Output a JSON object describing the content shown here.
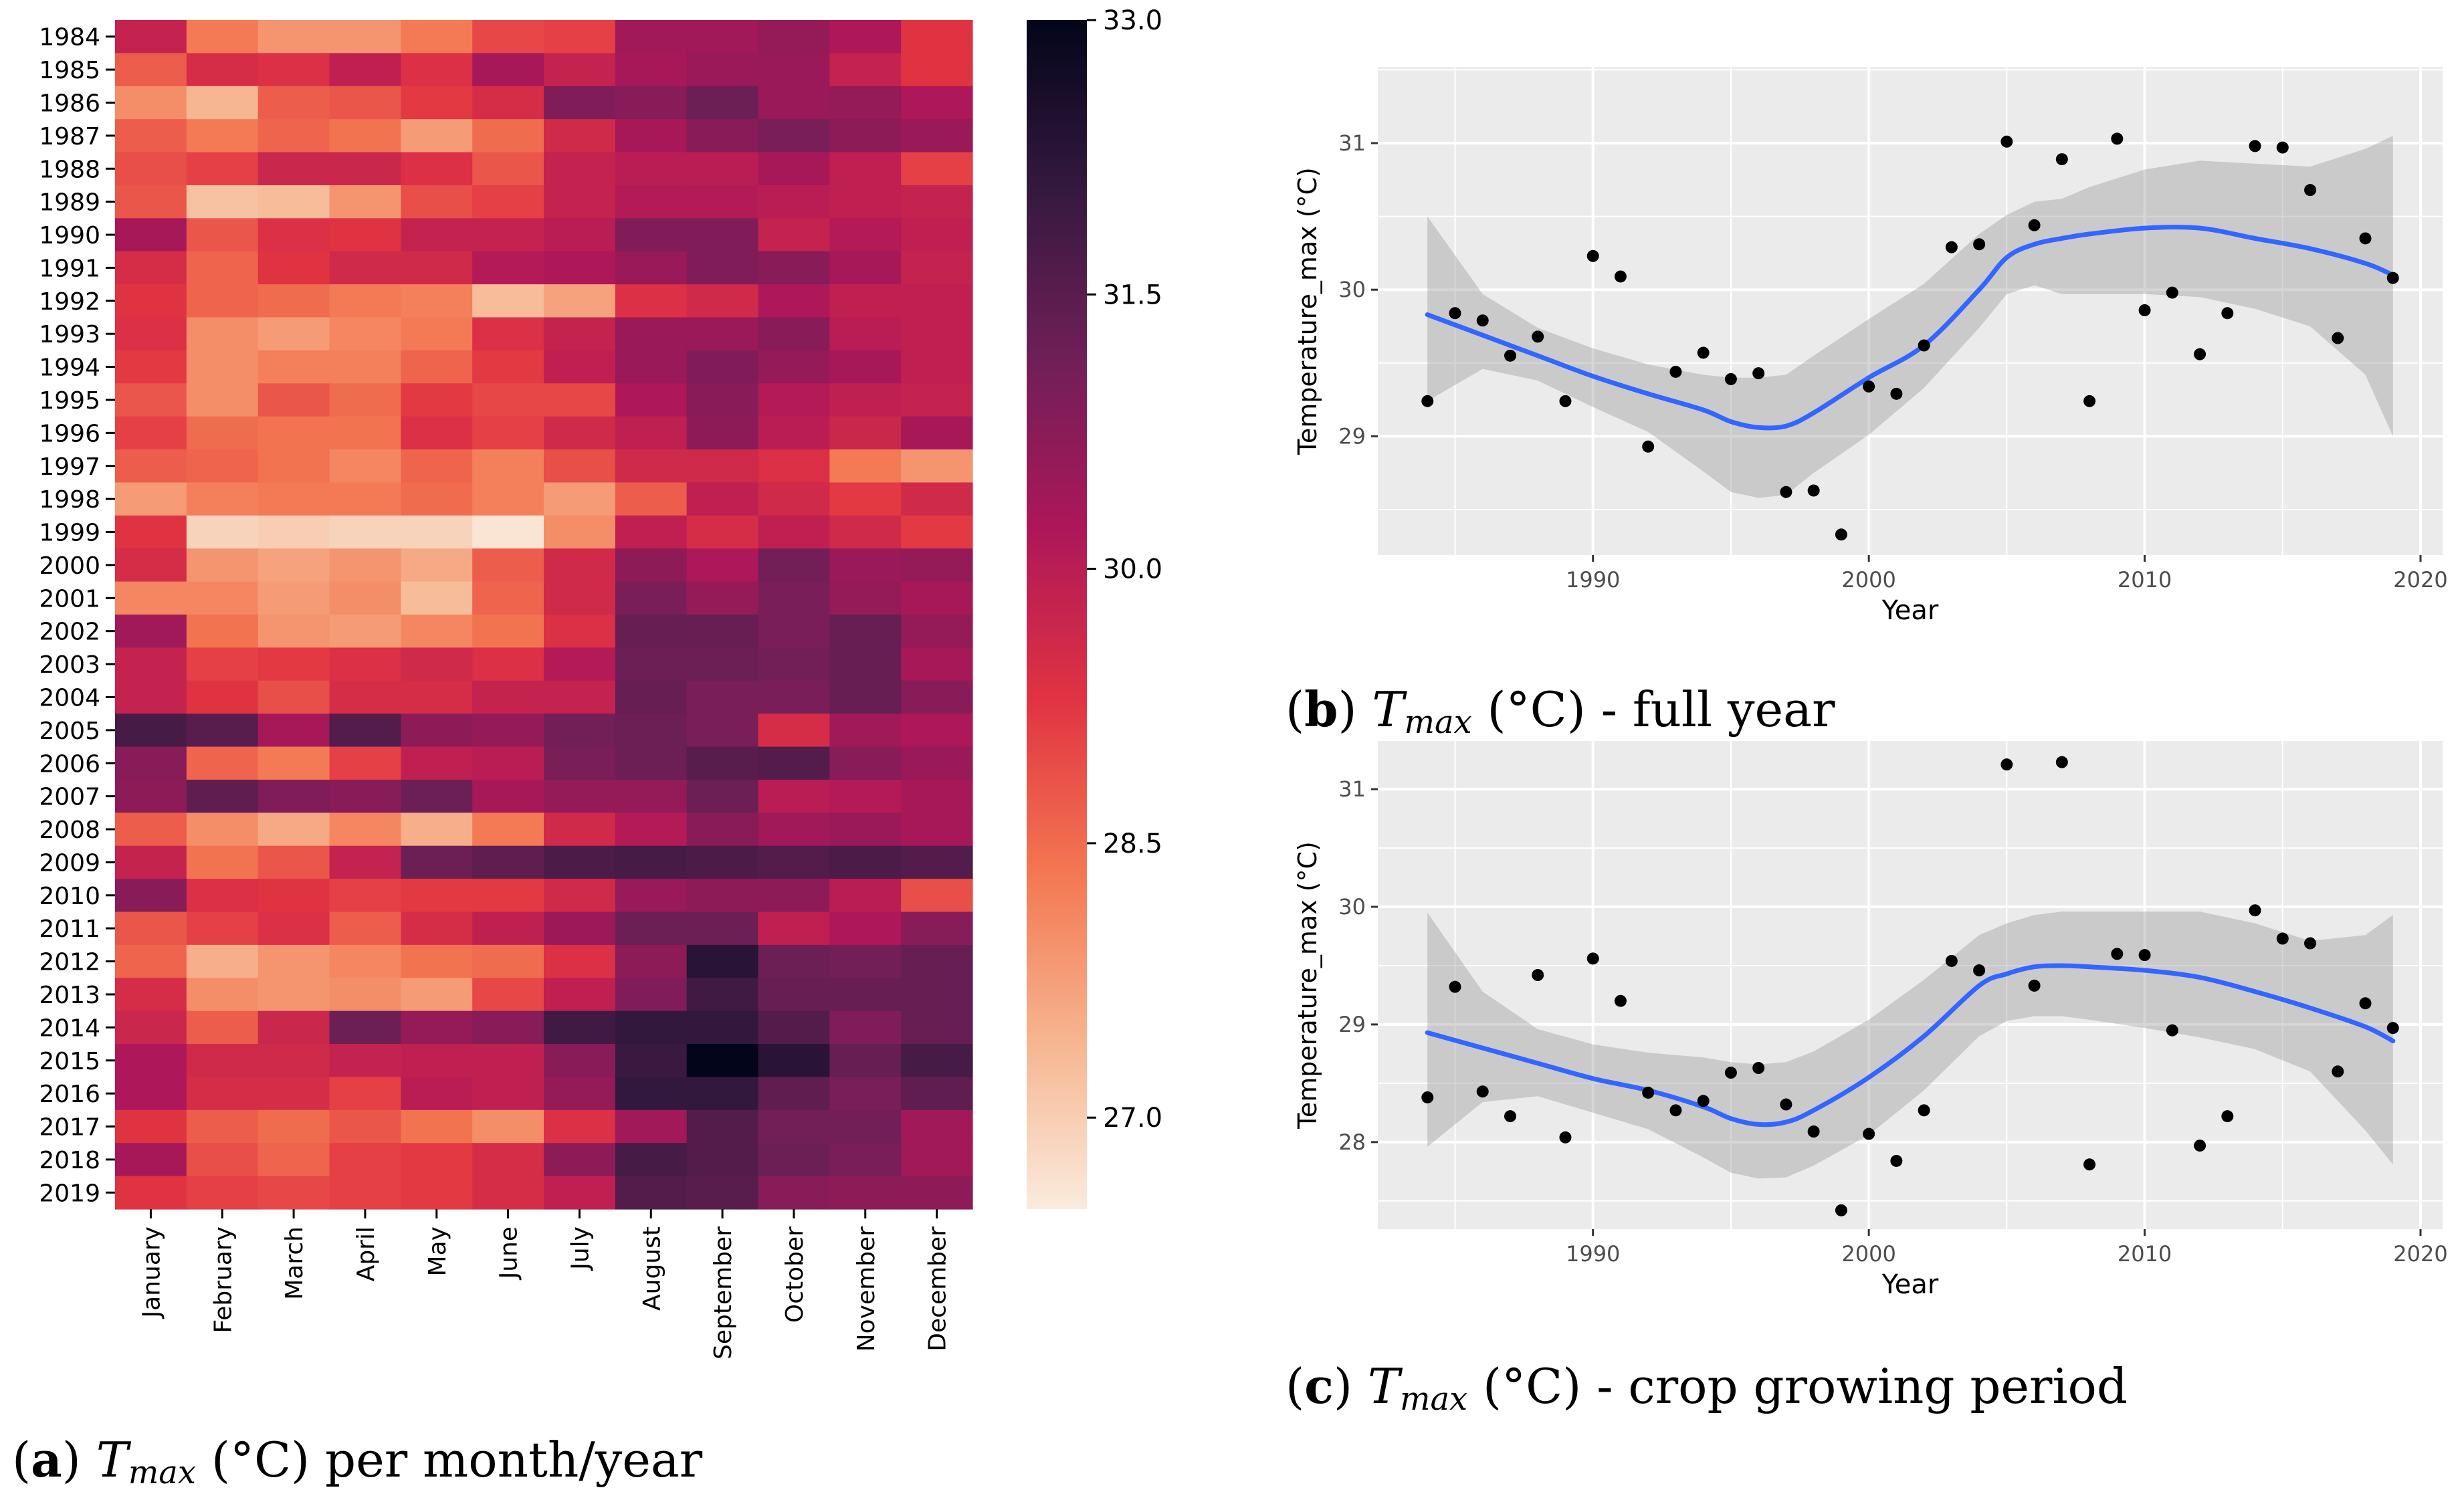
{
  "captions": {
    "a": {
      "label": "a",
      "var": "T",
      "sub": "max",
      "text": " (°C) per month/year"
    },
    "b": {
      "label": "b",
      "var": "T",
      "sub": "max",
      "text": " (°C) - full year"
    },
    "c": {
      "label": "c",
      "var": "T",
      "sub": "max",
      "text": " (°C) - crop growing period"
    }
  },
  "colors": {
    "panel_bg": "#ebebeb",
    "grid": "#ffffff",
    "smooth_line": "#3366ff",
    "ribbon": "#999999",
    "point": "#000000",
    "colormap": [
      "#faebdd",
      "#f6b48f",
      "#f37651",
      "#e13342",
      "#ad1759",
      "#701f57",
      "#35193e",
      "#03051a"
    ]
  },
  "chart_data": [
    {
      "type": "heatmap",
      "id": "a",
      "title": "",
      "x_categories": [
        "January",
        "February",
        "March",
        "April",
        "May",
        "June",
        "July",
        "August",
        "September",
        "October",
        "November",
        "December"
      ],
      "y_categories": [
        "1984",
        "1985",
        "1986",
        "1987",
        "1988",
        "1989",
        "1990",
        "1991",
        "1992",
        "1993",
        "1994",
        "1995",
        "1996",
        "1997",
        "1998",
        "1999",
        "2000",
        "2001",
        "2002",
        "2003",
        "2004",
        "2005",
        "2006",
        "2007",
        "2008",
        "2009",
        "2010",
        "2011",
        "2012",
        "2013",
        "2014",
        "2015",
        "2016",
        "2017",
        "2018",
        "2019"
      ],
      "colorbar": {
        "min": 26.5,
        "max": 33.0,
        "ticks": [
          "27.0",
          "28.5",
          "30.0",
          "31.5",
          "33.0"
        ]
      },
      "values": [
        [
          29.8,
          28.3,
          27.9,
          27.9,
          28.3,
          29.0,
          29.1,
          30.4,
          30.4,
          30.6,
          30.2,
          29.3
        ],
        [
          28.7,
          29.5,
          29.4,
          29.9,
          29.4,
          30.3,
          29.8,
          30.3,
          30.5,
          30.5,
          29.8,
          29.3
        ],
        [
          28.0,
          27.4,
          28.7,
          28.8,
          29.2,
          29.5,
          30.9,
          30.8,
          31.2,
          30.5,
          30.6,
          30.2
        ],
        [
          28.7,
          28.3,
          28.6,
          28.4,
          27.8,
          28.5,
          29.6,
          30.3,
          30.8,
          31.0,
          30.7,
          30.5
        ],
        [
          28.9,
          29.1,
          29.7,
          29.7,
          29.4,
          28.8,
          29.8,
          30.0,
          30.0,
          30.3,
          29.9,
          29.1
        ],
        [
          28.8,
          27.2,
          27.3,
          27.9,
          28.9,
          29.1,
          29.8,
          30.1,
          30.1,
          30.0,
          29.9,
          29.8
        ],
        [
          30.3,
          28.8,
          29.4,
          29.3,
          29.8,
          29.8,
          30.0,
          30.9,
          30.9,
          29.8,
          30.1,
          29.9
        ],
        [
          29.5,
          28.6,
          29.3,
          29.6,
          29.6,
          30.1,
          30.2,
          30.5,
          30.9,
          30.8,
          30.3,
          29.8
        ],
        [
          29.3,
          28.6,
          28.5,
          28.3,
          28.2,
          27.3,
          27.7,
          29.4,
          29.6,
          30.2,
          29.9,
          29.9
        ],
        [
          29.4,
          28.0,
          27.8,
          28.1,
          28.3,
          29.4,
          29.8,
          30.5,
          30.5,
          30.8,
          30.0,
          29.9
        ],
        [
          29.2,
          28.0,
          28.2,
          28.2,
          28.6,
          29.2,
          29.9,
          30.5,
          30.9,
          30.6,
          30.3,
          29.9
        ],
        [
          28.8,
          28.0,
          28.8,
          28.5,
          29.2,
          29.0,
          29.0,
          30.2,
          30.8,
          30.1,
          29.9,
          29.8
        ],
        [
          29.1,
          28.5,
          28.4,
          28.4,
          29.4,
          29.1,
          29.6,
          29.9,
          30.7,
          30.0,
          29.7,
          30.3
        ],
        [
          28.7,
          28.6,
          28.4,
          28.1,
          28.6,
          28.2,
          28.9,
          29.6,
          29.6,
          29.4,
          28.3,
          27.9
        ],
        [
          27.8,
          28.2,
          28.3,
          28.3,
          28.5,
          28.2,
          27.8,
          28.7,
          29.9,
          29.6,
          29.2,
          29.6
        ],
        [
          29.3,
          26.9,
          27.0,
          26.9,
          26.9,
          26.6,
          28.0,
          29.9,
          29.5,
          29.9,
          29.6,
          29.2
        ],
        [
          29.5,
          27.9,
          27.7,
          27.9,
          27.6,
          28.7,
          29.6,
          30.7,
          30.2,
          31.1,
          30.5,
          30.6
        ],
        [
          28.1,
          28.1,
          27.8,
          28.0,
          27.3,
          28.6,
          29.6,
          31.0,
          30.6,
          31.0,
          30.6,
          30.3
        ],
        [
          30.4,
          28.4,
          27.9,
          27.8,
          28.1,
          28.4,
          29.4,
          31.3,
          31.3,
          31.0,
          31.3,
          30.6
        ],
        [
          29.8,
          29.1,
          29.2,
          29.4,
          29.6,
          29.4,
          30.1,
          31.2,
          31.2,
          31.1,
          31.3,
          30.3
        ],
        [
          29.8,
          29.3,
          28.9,
          29.5,
          29.5,
          29.8,
          29.8,
          31.3,
          31.0,
          31.0,
          31.3,
          30.8
        ],
        [
          31.8,
          31.5,
          30.3,
          31.6,
          30.7,
          30.6,
          31.1,
          31.2,
          31.0,
          29.5,
          30.4,
          30.2
        ],
        [
          30.8,
          28.6,
          28.3,
          29.1,
          29.9,
          30.0,
          31.0,
          31.2,
          31.5,
          31.6,
          30.8,
          30.5
        ],
        [
          30.7,
          31.4,
          30.9,
          30.8,
          31.2,
          30.3,
          30.6,
          30.6,
          31.2,
          30.0,
          30.1,
          30.3
        ],
        [
          28.7,
          28.0,
          27.6,
          28.1,
          27.5,
          28.3,
          29.6,
          30.1,
          30.8,
          30.4,
          30.5,
          30.3
        ],
        [
          29.8,
          28.4,
          28.8,
          29.8,
          31.2,
          31.4,
          31.7,
          31.8,
          31.7,
          31.6,
          31.7,
          31.6
        ],
        [
          30.8,
          29.4,
          29.3,
          29.1,
          29.2,
          29.2,
          29.6,
          30.5,
          30.7,
          30.7,
          30.0,
          28.9
        ],
        [
          28.8,
          29.1,
          29.4,
          28.7,
          29.5,
          29.9,
          30.5,
          31.2,
          31.2,
          29.9,
          30.2,
          30.8
        ],
        [
          28.6,
          27.5,
          27.9,
          28.1,
          28.4,
          28.5,
          29.4,
          30.7,
          32.3,
          31.2,
          31.1,
          31.3
        ],
        [
          29.5,
          28.0,
          27.9,
          28.0,
          27.8,
          29.0,
          29.9,
          30.9,
          31.9,
          31.3,
          31.3,
          31.3
        ],
        [
          29.7,
          28.7,
          29.7,
          31.2,
          30.6,
          30.8,
          31.9,
          32.1,
          32.1,
          31.6,
          30.9,
          31.3
        ],
        [
          30.2,
          29.6,
          29.6,
          29.8,
          29.9,
          29.9,
          30.8,
          32.0,
          33.0,
          32.3,
          31.3,
          31.8
        ],
        [
          30.2,
          29.5,
          29.5,
          29.1,
          30.0,
          29.9,
          30.6,
          32.1,
          32.1,
          31.4,
          31.0,
          31.4
        ],
        [
          29.3,
          28.7,
          28.5,
          28.8,
          28.4,
          28.0,
          29.4,
          30.4,
          31.6,
          31.1,
          31.1,
          30.4
        ],
        [
          30.3,
          28.9,
          28.6,
          29.1,
          29.2,
          29.5,
          30.7,
          31.8,
          31.6,
          31.2,
          31.0,
          30.4
        ],
        [
          29.3,
          29.1,
          29.0,
          29.1,
          29.2,
          29.5,
          29.9,
          31.6,
          31.5,
          30.8,
          30.7,
          30.7
        ]
      ]
    },
    {
      "type": "scatter",
      "id": "b",
      "xlabel": "Year",
      "ylabel": "Temperature_max (°C)",
      "xlim": [
        1982.2,
        2020.8
      ],
      "ylim": [
        28.19,
        31.52
      ],
      "xticks": [
        "1990",
        "2000",
        "2010",
        "2020"
      ],
      "yticks": [
        "29",
        "30",
        "31"
      ],
      "x": [
        1984,
        1985,
        1986,
        1987,
        1988,
        1989,
        1990,
        1991,
        1992,
        1993,
        1994,
        1995,
        1996,
        1997,
        1998,
        1999,
        2000,
        2001,
        2002,
        2003,
        2004,
        2005,
        2006,
        2007,
        2008,
        2009,
        2010,
        2011,
        2012,
        2013,
        2014,
        2015,
        2016,
        2017,
        2018,
        2019
      ],
      "y": [
        29.24,
        29.84,
        29.79,
        29.55,
        29.68,
        29.24,
        30.23,
        30.09,
        28.93,
        29.44,
        29.57,
        29.39,
        29.43,
        28.62,
        28.63,
        28.33,
        29.34,
        29.29,
        29.62,
        30.29,
        30.31,
        31.01,
        30.44,
        30.89,
        29.24,
        31.03,
        29.86,
        29.98,
        29.56,
        29.84,
        30.98,
        30.97,
        30.68,
        29.67,
        30.35,
        30.08
      ],
      "smooth": {
        "x": [
          1984,
          1986,
          1988,
          1990,
          1992,
          1994,
          1995,
          1996,
          1997,
          1998,
          2000,
          2002,
          2004,
          2005,
          2006,
          2007,
          2008,
          2010,
          2012,
          2014,
          2016,
          2018,
          2019
        ],
        "y": [
          29.83,
          29.69,
          29.55,
          29.41,
          29.29,
          29.18,
          29.1,
          29.06,
          29.07,
          29.16,
          29.4,
          29.62,
          30.0,
          30.22,
          30.31,
          30.35,
          30.38,
          30.42,
          30.42,
          30.35,
          30.28,
          30.18,
          30.1
        ],
        "lower": [
          29.24,
          29.46,
          29.38,
          29.2,
          29.03,
          28.76,
          28.62,
          28.58,
          28.6,
          28.75,
          29.01,
          29.33,
          29.74,
          29.97,
          30.03,
          29.97,
          29.97,
          29.97,
          29.95,
          29.87,
          29.75,
          29.42,
          29.0
        ],
        "upper": [
          30.5,
          29.97,
          29.74,
          29.6,
          29.49,
          29.42,
          29.4,
          29.4,
          29.42,
          29.55,
          29.8,
          30.04,
          30.38,
          30.51,
          30.6,
          30.62,
          30.7,
          30.82,
          30.88,
          30.86,
          30.84,
          30.96,
          31.05
        ]
      }
    },
    {
      "type": "scatter",
      "id": "c",
      "xlabel": "Year",
      "ylabel": "Temperature_max (°C)",
      "xlim": [
        1982.2,
        2020.8
      ],
      "ylim": [
        27.26,
        31.41
      ],
      "xticks": [
        "1990",
        "2000",
        "2010",
        "2020"
      ],
      "yticks": [
        "28",
        "29",
        "30",
        "31"
      ],
      "x": [
        1984,
        1985,
        1986,
        1987,
        1988,
        1989,
        1990,
        1991,
        1992,
        1993,
        1994,
        1995,
        1996,
        1997,
        1998,
        1999,
        2000,
        2001,
        2002,
        2003,
        2004,
        2005,
        2006,
        2007,
        2008,
        2009,
        2010,
        2011,
        2012,
        2013,
        2014,
        2015,
        2016,
        2017,
        2018,
        2019
      ],
      "y": [
        28.38,
        29.32,
        28.43,
        28.22,
        29.42,
        28.04,
        29.56,
        29.2,
        28.42,
        28.27,
        28.35,
        28.59,
        28.63,
        28.32,
        28.09,
        27.42,
        28.07,
        27.84,
        28.27,
        29.54,
        29.46,
        31.21,
        29.33,
        31.23,
        27.81,
        29.6,
        29.59,
        28.95,
        27.97,
        28.22,
        29.97,
        29.73,
        29.69,
        28.6,
        29.18,
        28.97
      ],
      "smooth": {
        "x": [
          1984,
          1986,
          1988,
          1990,
          1992,
          1994,
          1995,
          1996,
          1997,
          1998,
          2000,
          2002,
          2004,
          2005,
          2006,
          2007,
          2008,
          2010,
          2012,
          2014,
          2016,
          2018,
          2019
        ],
        "y": [
          28.93,
          28.8,
          28.67,
          28.54,
          28.44,
          28.3,
          28.2,
          28.15,
          28.17,
          28.27,
          28.55,
          28.9,
          29.33,
          29.43,
          29.49,
          29.5,
          29.49,
          29.46,
          29.4,
          29.28,
          29.14,
          28.98,
          28.86
        ],
        "lower": [
          27.96,
          28.34,
          28.39,
          28.25,
          28.11,
          27.87,
          27.74,
          27.69,
          27.7,
          27.8,
          28.06,
          28.44,
          28.9,
          29.03,
          29.07,
          29.07,
          29.04,
          28.97,
          28.89,
          28.79,
          28.6,
          28.1,
          27.81
        ],
        "upper": [
          29.95,
          29.28,
          28.96,
          28.83,
          28.76,
          28.72,
          28.68,
          28.66,
          28.68,
          28.77,
          29.04,
          29.38,
          29.76,
          29.86,
          29.93,
          29.96,
          29.96,
          29.96,
          29.96,
          29.86,
          29.71,
          29.76,
          29.93
        ]
      }
    }
  ]
}
